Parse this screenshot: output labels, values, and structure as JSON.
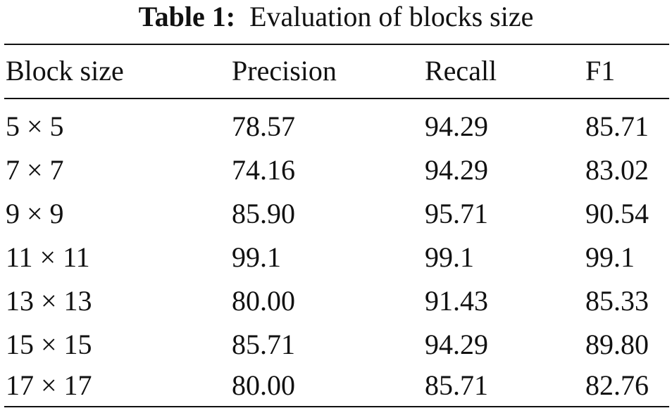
{
  "caption": {
    "label": "Table 1:",
    "text": "Evaluation of blocks size"
  },
  "table": {
    "columns": [
      "Block size",
      "Precision",
      "Recall",
      "F1"
    ],
    "rows": [
      [
        "5 × 5",
        "78.57",
        "94.29",
        "85.71"
      ],
      [
        "7 × 7",
        "74.16",
        "94.29",
        "83.02"
      ],
      [
        "9 × 9",
        "85.90",
        "95.71",
        "90.54"
      ],
      [
        "11 × 11",
        "99.1",
        "99.1",
        "99.1"
      ],
      [
        "13 × 13",
        "80.00",
        "91.43",
        "85.33"
      ],
      [
        "15 × 15",
        "85.71",
        "94.29",
        "89.80"
      ],
      [
        "17 × 17",
        "80.00",
        "85.71",
        "82.76"
      ]
    ]
  }
}
